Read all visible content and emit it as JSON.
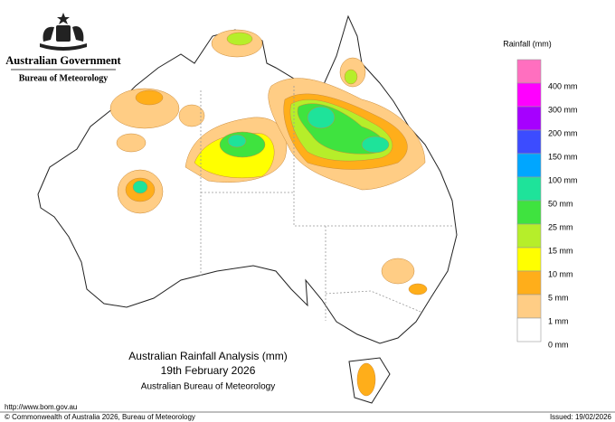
{
  "header": {
    "government": "Australian Government",
    "agency": "Bureau of Meteorology"
  },
  "legend": {
    "title": "Rainfall (mm)",
    "items": [
      {
        "label": "400 mm",
        "color": "#ff6fbf"
      },
      {
        "label": "300 mm",
        "color": "#ff00ff"
      },
      {
        "label": "200 mm",
        "color": "#a600ff"
      },
      {
        "label": "150 mm",
        "color": "#3c4cff"
      },
      {
        "label": "100 mm",
        "color": "#00a6ff"
      },
      {
        "label": "50 mm",
        "color": "#1ee39a"
      },
      {
        "label": "25 mm",
        "color": "#3fe33f"
      },
      {
        "label": "15 mm",
        "color": "#b6ee2a"
      },
      {
        "label": "10 mm",
        "color": "#ffff00"
      },
      {
        "label": "5 mm",
        "color": "#ffae1a"
      },
      {
        "label": "1 mm",
        "color": "#ffcd85"
      },
      {
        "label": "0 mm",
        "color": "#ffffff"
      }
    ]
  },
  "map_title": {
    "line1": "Australian Rainfall Analysis (mm)",
    "line2": "19th February 2026",
    "line3": "Australian Bureau of Meteorology"
  },
  "footer": {
    "url": "http://www.bom.gov.au",
    "copyright": "© Commonwealth of Australia 2026, Bureau of Meteorology",
    "issued": "Issued: 19/02/2026"
  }
}
